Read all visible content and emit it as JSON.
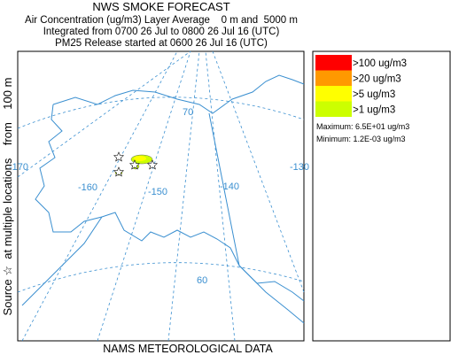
{
  "header": {
    "title": "NWS SMOKE FORECAST",
    "lines": [
      "Air Concentration (ug/m3) Layer Average    0 m and  5000 m",
      "Integrated from 0700 26 Jul to 0800 26 Jul 16 (UTC)",
      "PM25 Release started at 0600 26 Jul 16 (UTC)"
    ]
  },
  "side_label": "Source ☆  at multiple locations    from    100 m",
  "footer": "NAMS METEOROLOGICAL DATA",
  "graticule_labels": [
    "70",
    "-170",
    "-160",
    "-150",
    "-140",
    "-130",
    "60"
  ],
  "legend": {
    "items": [
      {
        "label": ">100 ug/m3",
        "color": "#ff0000"
      },
      {
        "label": ">20 ug/m3",
        "color": "#ff9900"
      },
      {
        "label": ">5 ug/m3",
        "color": "#ffff00"
      },
      {
        "label": ">1 ug/m3",
        "color": "#ccff00"
      }
    ],
    "maximum": "Maximum: 6.5E+01 ug/m3",
    "minimum": "Minimum: 1.2E-03 ug/m3"
  }
}
